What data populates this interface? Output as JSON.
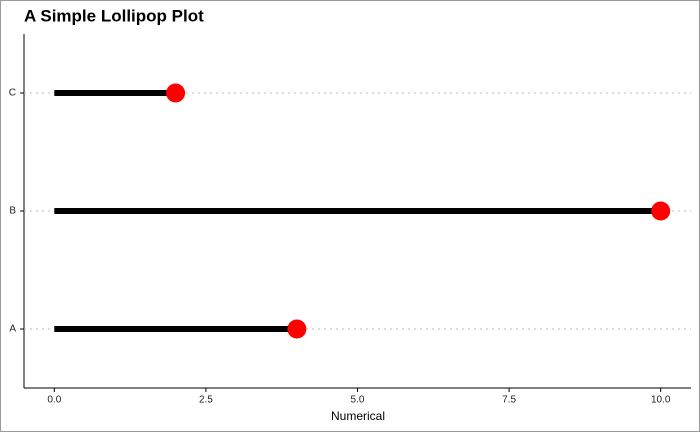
{
  "chart_data": {
    "type": "lollipop",
    "title": "A Simple Lollipop Plot",
    "x_label": "Numerical",
    "categories": [
      "A",
      "B",
      "C"
    ],
    "values": [
      4,
      10,
      2
    ],
    "stem_color": "#000000",
    "color": "#ff0000",
    "xlim": [
      -0.5,
      10.5
    ],
    "xticks": [
      {
        "value": 0,
        "label": "0.0"
      },
      2.5,
      {
        "value": 5,
        "label": "5.0"
      },
      7.5,
      {
        "value": 10,
        "label": "10.0"
      }
    ],
    "grid": true
  }
}
